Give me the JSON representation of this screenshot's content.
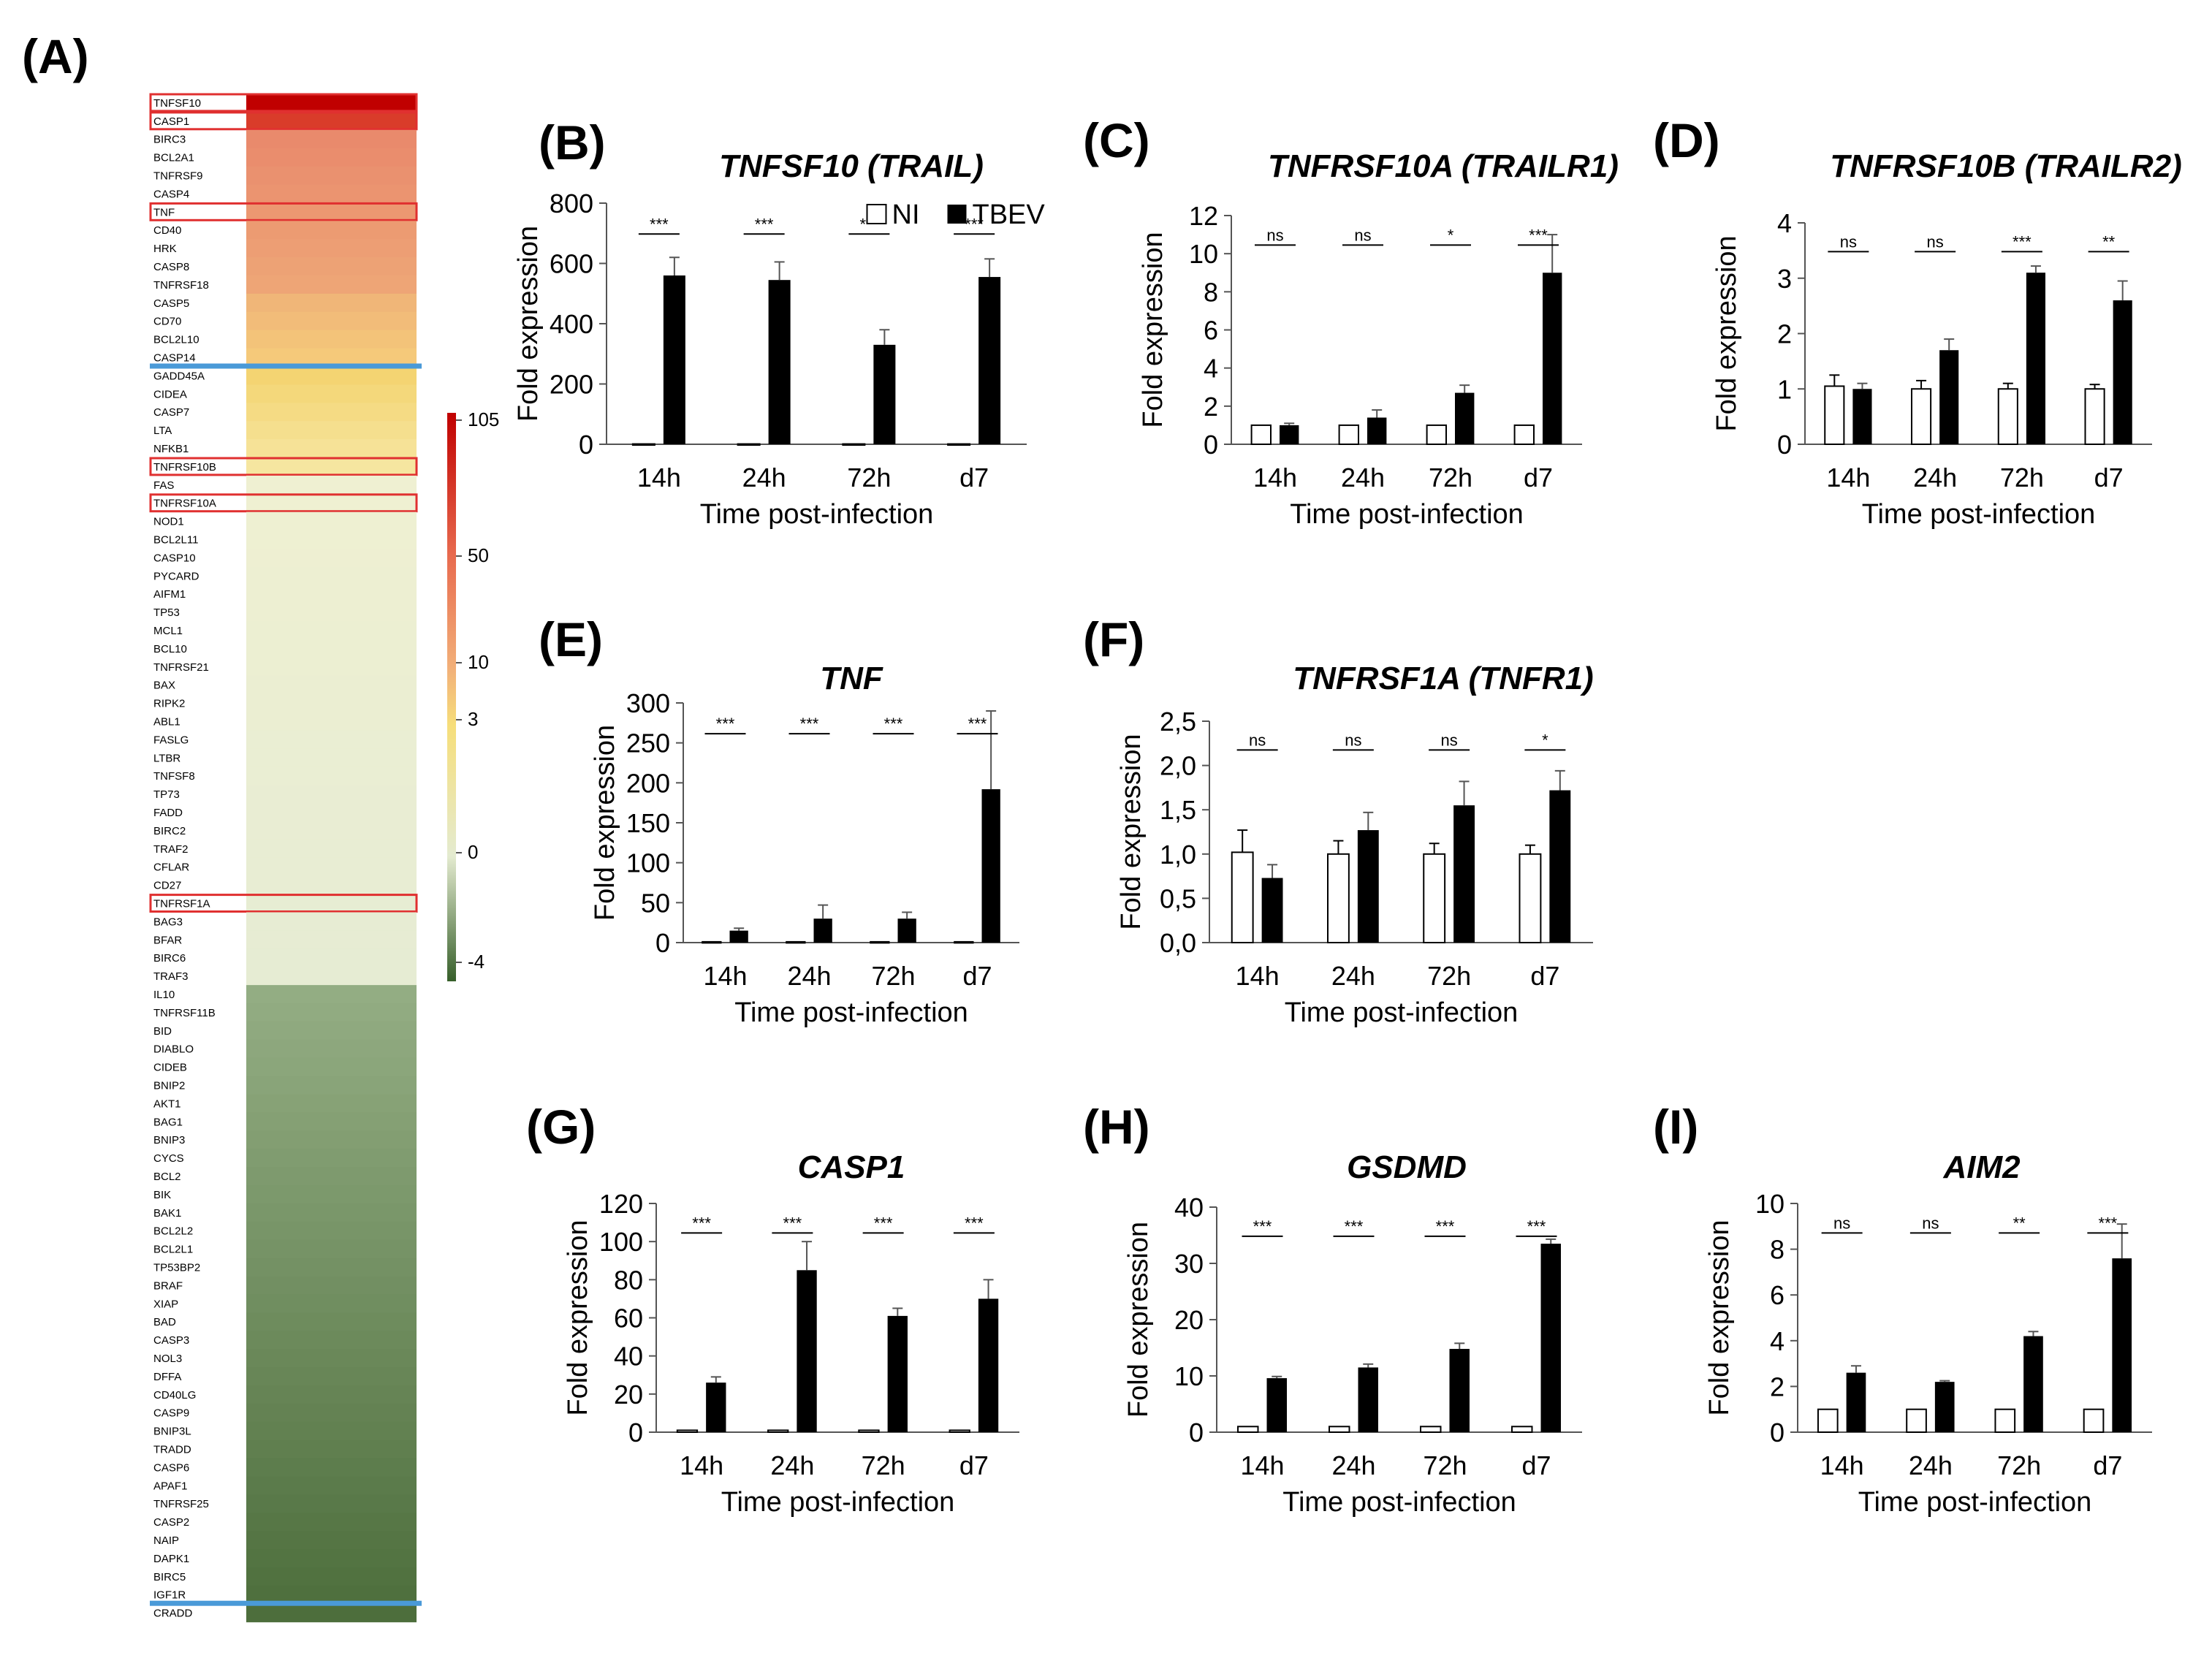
{
  "panel_a": {
    "label": "(A)",
    "genes": [
      "TNFSF10",
      "CASP1",
      "BIRC3",
      "BCL2A1",
      "TNFRSF9",
      "CASP4",
      "TNF",
      "CD40",
      "HRK",
      "CASP8",
      "TNFRSF18",
      "CASP5",
      "CD70",
      "BCL2L10",
      "CASP14",
      "GADD45A",
      "CIDEA",
      "CASP7",
      "LTA",
      "NFKB1",
      "TNFRSF10B",
      "FAS",
      "TNFRSF10A",
      "NOD1",
      "BCL2L11",
      "CASP10",
      "PYCARD",
      "AIFM1",
      "TP53",
      "MCL1",
      "BCL10",
      "TNFRSF21",
      "BAX",
      "RIPK2",
      "ABL1",
      "FASLG",
      "LTBR",
      "TNFSF8",
      "TP73",
      "FADD",
      "BIRC2",
      "TRAF2",
      "CFLAR",
      "CD27",
      "TNFRSF1A",
      "BAG3",
      "BFAR",
      "BIRC6",
      "TRAF3",
      "IL10",
      "TNFRSF11B",
      "BID",
      "DIABLO",
      "CIDEB",
      "BNIP2",
      "AKT1",
      "BAG1",
      "BNIP3",
      "CYCS",
      "BCL2",
      "BIK",
      "BAK1",
      "BCL2L2",
      "BCL2L1",
      "TP53BP2",
      "BRAF",
      "XIAP",
      "BAD",
      "CASP3",
      "NOL3",
      "DFFA",
      "CD40LG",
      "CASP9",
      "BNIP3L",
      "TRADD",
      "CASP6",
      "APAF1",
      "TNFRSF25",
      "CASP2",
      "NAIP",
      "DAPK1",
      "BIRC5",
      "IGF1R",
      "CRADD"
    ],
    "highlighted": [
      "TNFSF10",
      "CASP1",
      "TNF",
      "TNFRSF10B",
      "TNFRSF10A",
      "TNFRSF1A"
    ],
    "colorbar": {
      "ticks": [
        "105",
        "50",
        "10",
        "3",
        "0",
        "-4"
      ],
      "stops": [
        {
          "value": "105",
          "color": "#c00000"
        },
        {
          "value": "50",
          "color": "#e86a4e"
        },
        {
          "value": "10",
          "color": "#f2b079"
        },
        {
          "value": "3",
          "color": "#f6de7a"
        },
        {
          "value": "0",
          "color": "#e4ebd0"
        },
        {
          "value": "-4",
          "color": "#365f2a"
        }
      ]
    },
    "colors": {
      "high": "#c00000",
      "mid_high": "#ec9a78",
      "mid": "#f4d472",
      "neutral": "#e6ecd3",
      "low": "#8aa877",
      "lowest": "#4d6e3c",
      "highlight_box": "#e03030",
      "divider": "#4a9ad8"
    }
  },
  "legend": {
    "ni": "NI",
    "tbev": "TBEV",
    "ni_color": "#ffffff",
    "tbev_color": "#000000"
  },
  "chart_data": [
    {
      "panel": "(B)",
      "type": "bar",
      "title": "TNFSF10 (TRAIL)",
      "categories": [
        "14h",
        "24h",
        "72h",
        "d7"
      ],
      "series": [
        {
          "name": "NI",
          "values": [
            1,
            1,
            1,
            1
          ],
          "errors": [
            0,
            0,
            0,
            0
          ]
        },
        {
          "name": "TBEV",
          "values": [
            560,
            545,
            330,
            555
          ],
          "errors": [
            60,
            60,
            50,
            60
          ]
        }
      ],
      "significance": [
        "***",
        "***",
        "***",
        "***"
      ],
      "ylabel": "Fold expression",
      "xlabel": "Time post-infection",
      "ylim": [
        0,
        800
      ],
      "yticks": [
        "0",
        "200",
        "400",
        "600",
        "800"
      ],
      "legend": true
    },
    {
      "panel": "(C)",
      "type": "bar",
      "title": "TNFRSF10A (TRAILR1)",
      "categories": [
        "14h",
        "24h",
        "72h",
        "d7"
      ],
      "series": [
        {
          "name": "NI",
          "values": [
            1,
            1,
            1,
            1
          ],
          "errors": [
            0,
            0,
            0,
            0
          ]
        },
        {
          "name": "TBEV",
          "values": [
            1.0,
            1.4,
            2.7,
            9.0
          ],
          "errors": [
            0.1,
            0.4,
            0.4,
            2.0
          ]
        }
      ],
      "significance": [
        "ns",
        "ns",
        "*",
        "***"
      ],
      "ylabel": "Fold expression",
      "xlabel": "Time post-infection",
      "ylim": [
        0,
        12
      ],
      "yticks": [
        "0",
        "2",
        "4",
        "6",
        "8",
        "10",
        "12"
      ]
    },
    {
      "panel": "(D)",
      "type": "bar",
      "title": "TNFRSF10B (TRAILR2)",
      "categories": [
        "14h",
        "24h",
        "72h",
        "d7"
      ],
      "series": [
        {
          "name": "NI",
          "values": [
            1.05,
            1.0,
            1.0,
            1.0
          ],
          "errors": [
            0.2,
            0.15,
            0.1,
            0.08
          ]
        },
        {
          "name": "TBEV",
          "values": [
            1.0,
            1.7,
            3.1,
            2.6
          ],
          "errors": [
            0.1,
            0.2,
            0.12,
            0.35
          ]
        }
      ],
      "significance": [
        "ns",
        "ns",
        "***",
        "**"
      ],
      "ylabel": "Fold expression",
      "xlabel": "Time post-infection",
      "ylim": [
        0,
        4
      ],
      "yticks": [
        "0",
        "1",
        "2",
        "3",
        "4"
      ]
    },
    {
      "panel": "(E)",
      "type": "bar",
      "title": "TNF",
      "categories": [
        "14h",
        "24h",
        "72h",
        "d7"
      ],
      "series": [
        {
          "name": "NI",
          "values": [
            1,
            1,
            1,
            1
          ],
          "errors": [
            0,
            0,
            0,
            0
          ]
        },
        {
          "name": "TBEV",
          "values": [
            15,
            30,
            30,
            192
          ],
          "errors": [
            3,
            17,
            8,
            98
          ]
        }
      ],
      "significance": [
        "***",
        "***",
        "***",
        "***"
      ],
      "ylabel": "Fold expression",
      "xlabel": "Time post-infection",
      "ylim": [
        0,
        300
      ],
      "yticks": [
        "0",
        "50",
        "100",
        "150",
        "200",
        "250",
        "300"
      ]
    },
    {
      "panel": "(F)",
      "type": "bar",
      "title": "TNFRSF1A (TNFR1)",
      "categories": [
        "14h",
        "24h",
        "72h",
        "d7"
      ],
      "series": [
        {
          "name": "NI",
          "values": [
            1.02,
            1.0,
            1.0,
            1.0
          ],
          "errors": [
            0.25,
            0.15,
            0.12,
            0.1
          ]
        },
        {
          "name": "TBEV",
          "values": [
            0.73,
            1.27,
            1.55,
            1.72
          ],
          "errors": [
            0.15,
            0.2,
            0.27,
            0.22
          ]
        }
      ],
      "significance": [
        "ns",
        "ns",
        "ns",
        "*"
      ],
      "ylabel": "Fold expression",
      "xlabel": "Time post-infection",
      "ylim": [
        0,
        2.5
      ],
      "yticks": [
        "0,0",
        "0,5",
        "1,0",
        "1,5",
        "2,0",
        "2,5"
      ]
    },
    {
      "panel": "(G)",
      "type": "bar",
      "title": "CASP1",
      "categories": [
        "14h",
        "24h",
        "72h",
        "d7"
      ],
      "series": [
        {
          "name": "NI",
          "values": [
            1,
            1,
            1,
            1
          ],
          "errors": [
            0,
            0,
            0,
            0
          ]
        },
        {
          "name": "TBEV",
          "values": [
            26,
            85,
            61,
            70
          ],
          "errors": [
            3,
            15,
            4,
            10
          ]
        }
      ],
      "significance": [
        "***",
        "***",
        "***",
        "***"
      ],
      "ylabel": "Fold expression",
      "xlabel": "Time post-infection",
      "ylim": [
        0,
        120
      ],
      "yticks": [
        "0",
        "20",
        "40",
        "60",
        "80",
        "100",
        "120"
      ]
    },
    {
      "panel": "(H)",
      "type": "bar",
      "title": "GSDMD",
      "categories": [
        "14h",
        "24h",
        "72h",
        "d7"
      ],
      "series": [
        {
          "name": "NI",
          "values": [
            1,
            1,
            1,
            1
          ],
          "errors": [
            0,
            0,
            0,
            0
          ]
        },
        {
          "name": "TBEV",
          "values": [
            9.6,
            11.5,
            14.8,
            33.5
          ],
          "errors": [
            0.3,
            0.6,
            1.0,
            0.8
          ]
        }
      ],
      "significance": [
        "***",
        "***",
        "***",
        "***"
      ],
      "ylabel": "Fold expression",
      "xlabel": "Time post-infection",
      "ylim": [
        0,
        40
      ],
      "yticks": [
        "0",
        "10",
        "20",
        "30",
        "40"
      ]
    },
    {
      "panel": "(I)",
      "type": "bar",
      "title": "AIM2",
      "categories": [
        "14h",
        "24h",
        "72h",
        "d7"
      ],
      "series": [
        {
          "name": "NI",
          "values": [
            1,
            1,
            1,
            1
          ],
          "errors": [
            0,
            0,
            0,
            0
          ]
        },
        {
          "name": "TBEV",
          "values": [
            2.6,
            2.2,
            4.2,
            7.6
          ],
          "errors": [
            0.3,
            0.05,
            0.2,
            1.5
          ]
        }
      ],
      "significance": [
        "ns",
        "ns",
        "**",
        "***"
      ],
      "ylabel": "Fold expression",
      "xlabel": "Time post-infection",
      "ylim": [
        0,
        10
      ],
      "yticks": [
        "0",
        "2",
        "4",
        "6",
        "8",
        "10"
      ]
    }
  ]
}
